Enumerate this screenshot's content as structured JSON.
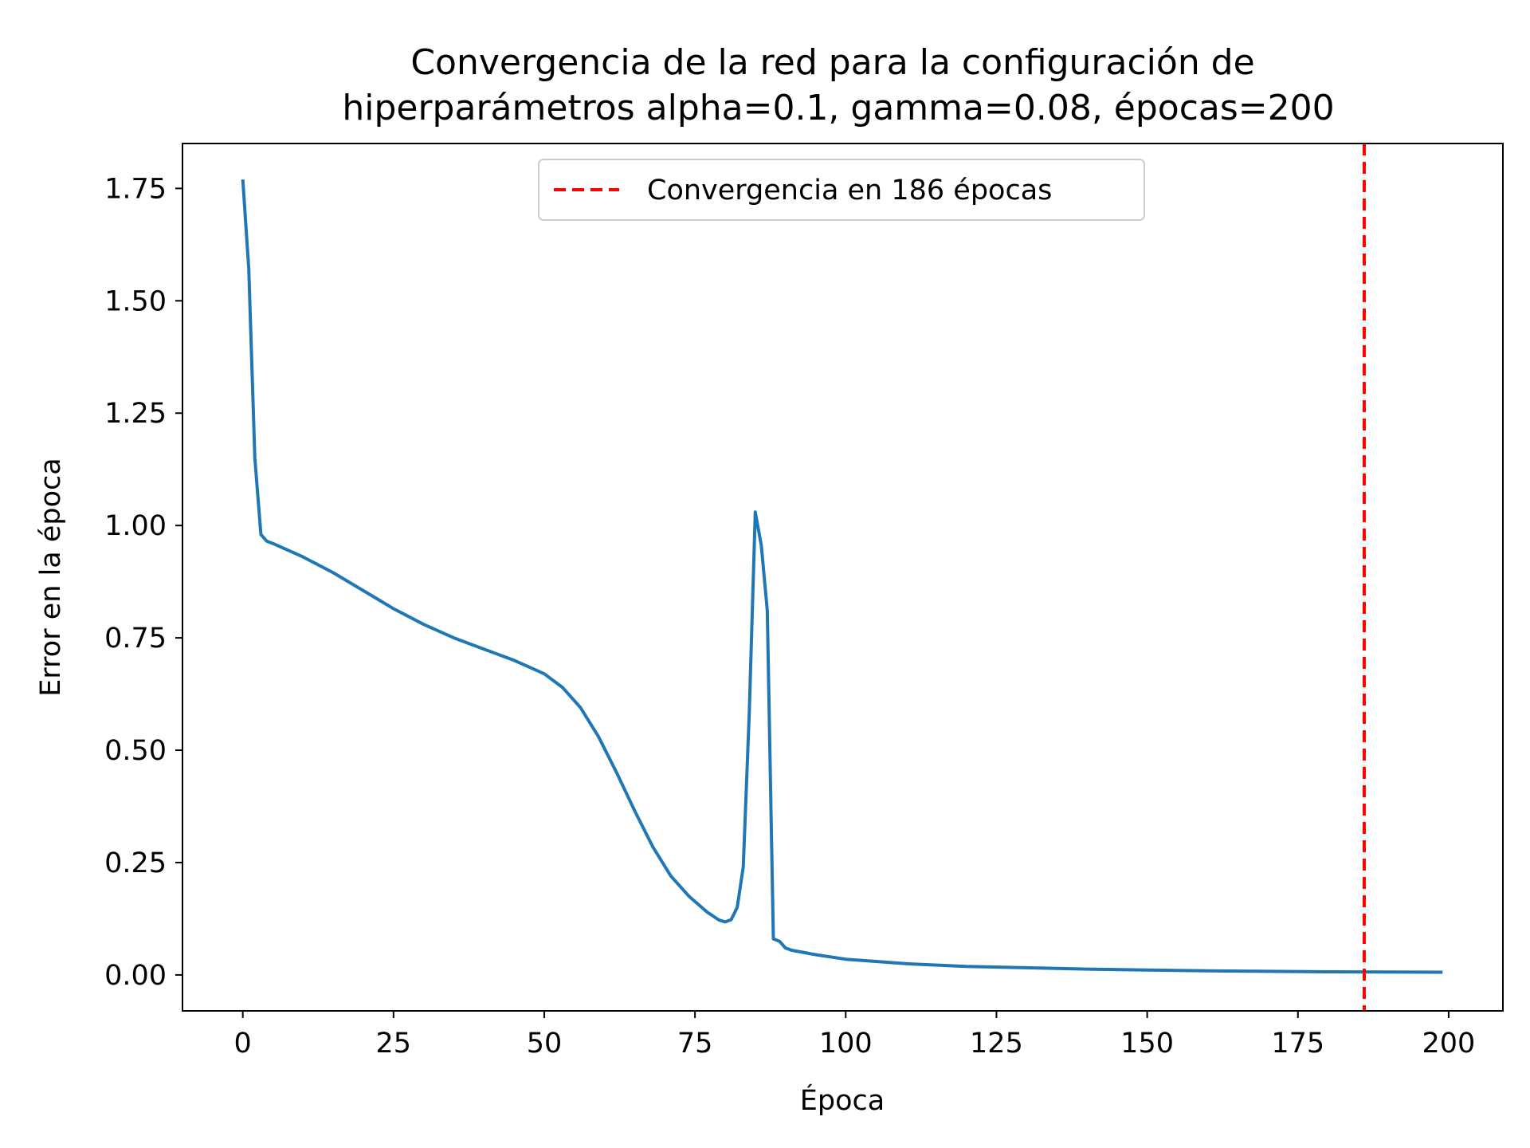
{
  "colors": {
    "series_line": "#1f77b4",
    "convergence_line": "#ff0000",
    "axes": "#000000",
    "background": "#ffffff",
    "legend_border": "#cccccc"
  },
  "chart_data": {
    "type": "line",
    "title": "Convergencia de la red para la configuración de\nhiperparámetros alpha=0.1, gamma=0.08, épocas=200",
    "xlabel": "Época",
    "ylabel": "Error en la época",
    "xlim": [
      -10,
      209
    ],
    "ylim": [
      -0.08,
      1.85
    ],
    "xticks": [
      0,
      25,
      50,
      75,
      100,
      125,
      150,
      175,
      200
    ],
    "yticks": [
      0.0,
      0.25,
      0.5,
      0.75,
      1.0,
      1.25,
      1.5,
      1.75
    ],
    "xtick_labels": [
      "0",
      "25",
      "50",
      "75",
      "100",
      "125",
      "150",
      "175",
      "200"
    ],
    "ytick_labels": [
      "0.00",
      "0.25",
      "0.50",
      "0.75",
      "1.00",
      "1.25",
      "1.50",
      "1.75"
    ],
    "grid": false,
    "legend_position": "upper center",
    "series": [
      {
        "x": [
          0,
          1,
          2,
          3,
          4,
          5,
          10,
          15,
          20,
          25,
          30,
          35,
          40,
          45,
          50,
          53,
          56,
          59,
          62,
          65,
          68,
          71,
          74,
          77,
          79,
          80,
          81,
          82,
          83,
          84,
          85,
          86,
          87,
          88,
          89,
          90,
          91,
          95,
          100,
          110,
          120,
          130,
          140,
          150,
          160,
          170,
          180,
          190,
          199
        ],
        "y": [
          1.77,
          1.57,
          1.15,
          0.98,
          0.965,
          0.96,
          0.93,
          0.895,
          0.855,
          0.815,
          0.78,
          0.75,
          0.725,
          0.7,
          0.67,
          0.64,
          0.595,
          0.53,
          0.45,
          0.365,
          0.285,
          0.22,
          0.175,
          0.14,
          0.122,
          0.118,
          0.123,
          0.15,
          0.24,
          0.58,
          1.03,
          0.955,
          0.81,
          0.08,
          0.075,
          0.06,
          0.055,
          0.045,
          0.035,
          0.025,
          0.019,
          0.016,
          0.013,
          0.011,
          0.009,
          0.008,
          0.007,
          0.0065,
          0.006
        ]
      }
    ],
    "vline": {
      "x": 186,
      "style": "dashed",
      "label": "Convergencia en 186 épocas"
    }
  }
}
